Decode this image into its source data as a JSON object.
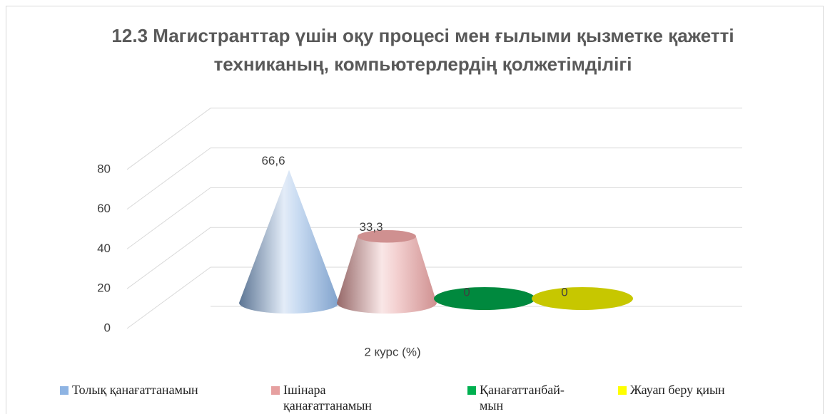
{
  "chart_data": {
    "type": "cone",
    "title": "12.3 Магистранттар үшін оқу процесі мен ғылыми қызметке қажетті техниканың, компьютерлердің қолжетімділігі",
    "categories": [
      "2 курс (%)"
    ],
    "ylim": [
      0,
      80
    ],
    "yticks": [
      0,
      20,
      40,
      60,
      80
    ],
    "grid": true,
    "legend": "bottom",
    "series": [
      {
        "name": "Толық қанағаттанамын",
        "color": "#8eb4e3",
        "shape": "cone",
        "values": [
          66.6
        ],
        "value_labels": [
          "66,6"
        ]
      },
      {
        "name": "Ішінара қанағаттанамын",
        "color": "#e6a0a0",
        "shape": "truncated-cone",
        "values": [
          33.3
        ],
        "value_labels": [
          "33,3"
        ]
      },
      {
        "name": "Қанағаттанбай-мын",
        "color": "#00b050",
        "shape": "truncated-cone",
        "values": [
          0
        ]
      },
      {
        "name": "Жауап беру қиын",
        "color": "#ffff00",
        "shape": "truncated-cone",
        "values": [
          0
        ]
      }
    ]
  }
}
